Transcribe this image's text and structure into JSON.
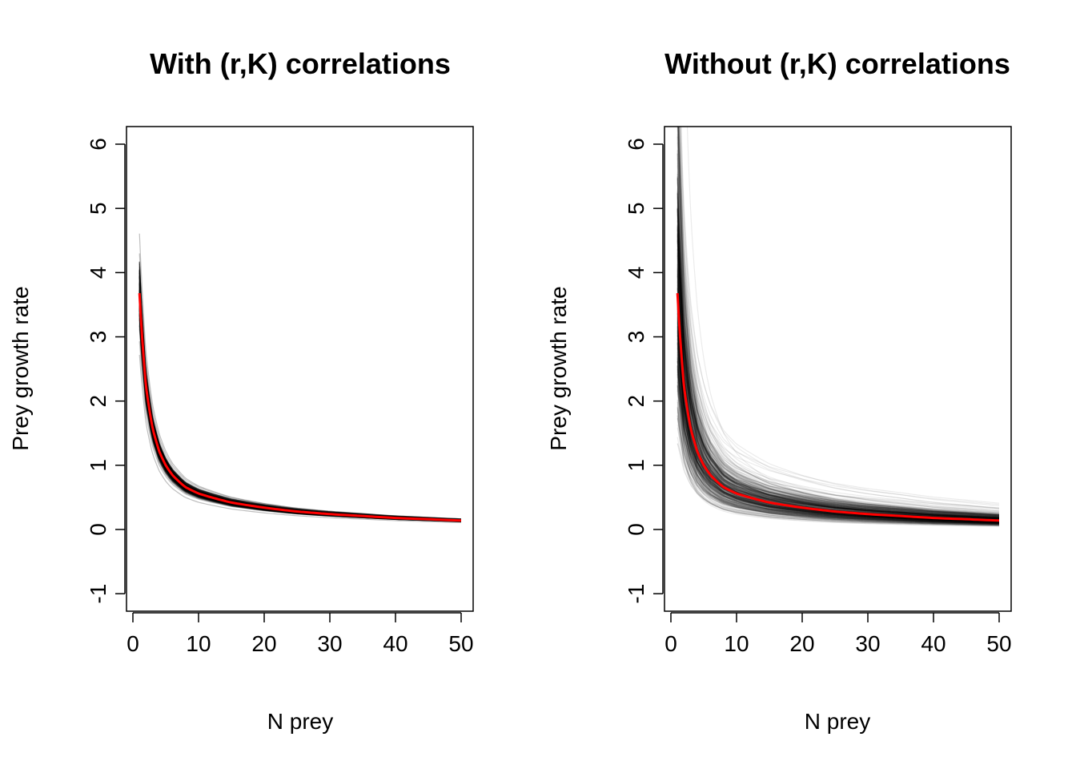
{
  "chart_data": [
    {
      "type": "line",
      "title": "With (r,K) correlations",
      "xlabel": "N prey",
      "ylabel": "Prey growth rate",
      "xlim": [
        0,
        50
      ],
      "ylim": [
        -1,
        6
      ],
      "x_ticks": [
        "0",
        "10",
        "20",
        "30",
        "40",
        "50"
      ],
      "y_ticks": [
        "-1",
        "0",
        "1",
        "2",
        "3",
        "4",
        "5",
        "6"
      ],
      "grid": false,
      "legend": "none",
      "series": [
        {
          "role": "posterior-samples",
          "color": "#000000",
          "description_values": {
            "x": [
              1,
              50
            ],
            "upper_at_x1": 4.6,
            "lower_at_x1": 3.2
          }
        },
        {
          "role": "posterior-mean",
          "color": "#ff0000",
          "x": [
            1,
            1.5,
            2,
            3,
            4,
            5,
            6,
            8,
            10,
            15,
            20,
            25,
            30,
            35,
            40,
            45,
            50
          ],
          "y": [
            3.68,
            2.86,
            2.22,
            1.58,
            1.22,
            1.0,
            0.85,
            0.66,
            0.56,
            0.42,
            0.34,
            0.28,
            0.24,
            0.21,
            0.18,
            0.16,
            0.14
          ]
        }
      ]
    },
    {
      "type": "line",
      "title": "Without (r,K) correlations",
      "xlabel": "N prey",
      "ylabel": "Prey growth rate",
      "xlim": [
        0,
        50
      ],
      "ylim": [
        -1,
        6
      ],
      "x_ticks": [
        "0",
        "10",
        "20",
        "30",
        "40",
        "50"
      ],
      "y_ticks": [
        "-1",
        "0",
        "1",
        "2",
        "3",
        "4",
        "5",
        "6"
      ],
      "grid": false,
      "legend": "none",
      "series": [
        {
          "role": "posterior-samples",
          "color": "#000000",
          "description_values": {
            "x": [
              1,
              50
            ],
            "upper_at_x1": 6.3,
            "lower_at_x1": 2.0,
            "upper_at_x50": 0.28,
            "lower_at_x50": 0.06
          }
        },
        {
          "role": "posterior-mean",
          "color": "#ff0000",
          "x": [
            1,
            1.5,
            2,
            3,
            4,
            5,
            6,
            8,
            10,
            15,
            20,
            25,
            30,
            35,
            40,
            45,
            50
          ],
          "y": [
            3.68,
            2.86,
            2.22,
            1.58,
            1.22,
            1.0,
            0.85,
            0.66,
            0.56,
            0.42,
            0.34,
            0.28,
            0.24,
            0.21,
            0.18,
            0.16,
            0.14
          ]
        }
      ]
    }
  ]
}
